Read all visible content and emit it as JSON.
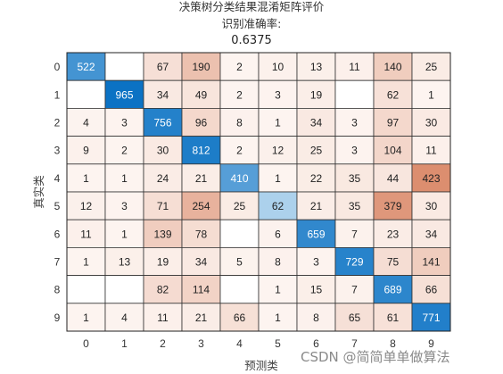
{
  "chart_data": {
    "type": "heatmap",
    "title": "决策树分类结果混淆矩阵评价",
    "subtitle_label": "识别准确率:",
    "subtitle_value": "0.6375",
    "xlabel": "预测类",
    "ylabel": "真实类",
    "x_ticks": [
      "0",
      "1",
      "2",
      "3",
      "4",
      "5",
      "6",
      "7",
      "8",
      "9"
    ],
    "y_ticks": [
      "0",
      "1",
      "2",
      "3",
      "4",
      "5",
      "6",
      "7",
      "8",
      "9"
    ],
    "values": [
      [
        522,
        null,
        67,
        190,
        2,
        10,
        13,
        11,
        140,
        25
      ],
      [
        null,
        965,
        34,
        49,
        2,
        3,
        19,
        null,
        62,
        1
      ],
      [
        4,
        3,
        756,
        96,
        8,
        1,
        34,
        3,
        97,
        30
      ],
      [
        9,
        2,
        30,
        812,
        2,
        12,
        25,
        3,
        104,
        11
      ],
      [
        1,
        1,
        24,
        21,
        410,
        1,
        22,
        35,
        44,
        423
      ],
      [
        12,
        3,
        71,
        254,
        25,
        62,
        21,
        35,
        379,
        30
      ],
      [
        11,
        1,
        139,
        78,
        null,
        6,
        659,
        7,
        23,
        34
      ],
      [
        1,
        13,
        19,
        34,
        5,
        8,
        3,
        729,
        75,
        141
      ],
      [
        null,
        null,
        82,
        114,
        null,
        1,
        15,
        7,
        689,
        66
      ],
      [
        1,
        4,
        11,
        21,
        66,
        1,
        8,
        65,
        61,
        771
      ]
    ],
    "colors": {
      "diagonal_low": "#e3f1fa",
      "diagonal_high": "#0b72c4",
      "offdiag_low": "#fdf5f1",
      "offdiag_high": "#dc8e6f",
      "grid": "#333333"
    }
  },
  "watermark": "CSDN @简简单单做算法"
}
